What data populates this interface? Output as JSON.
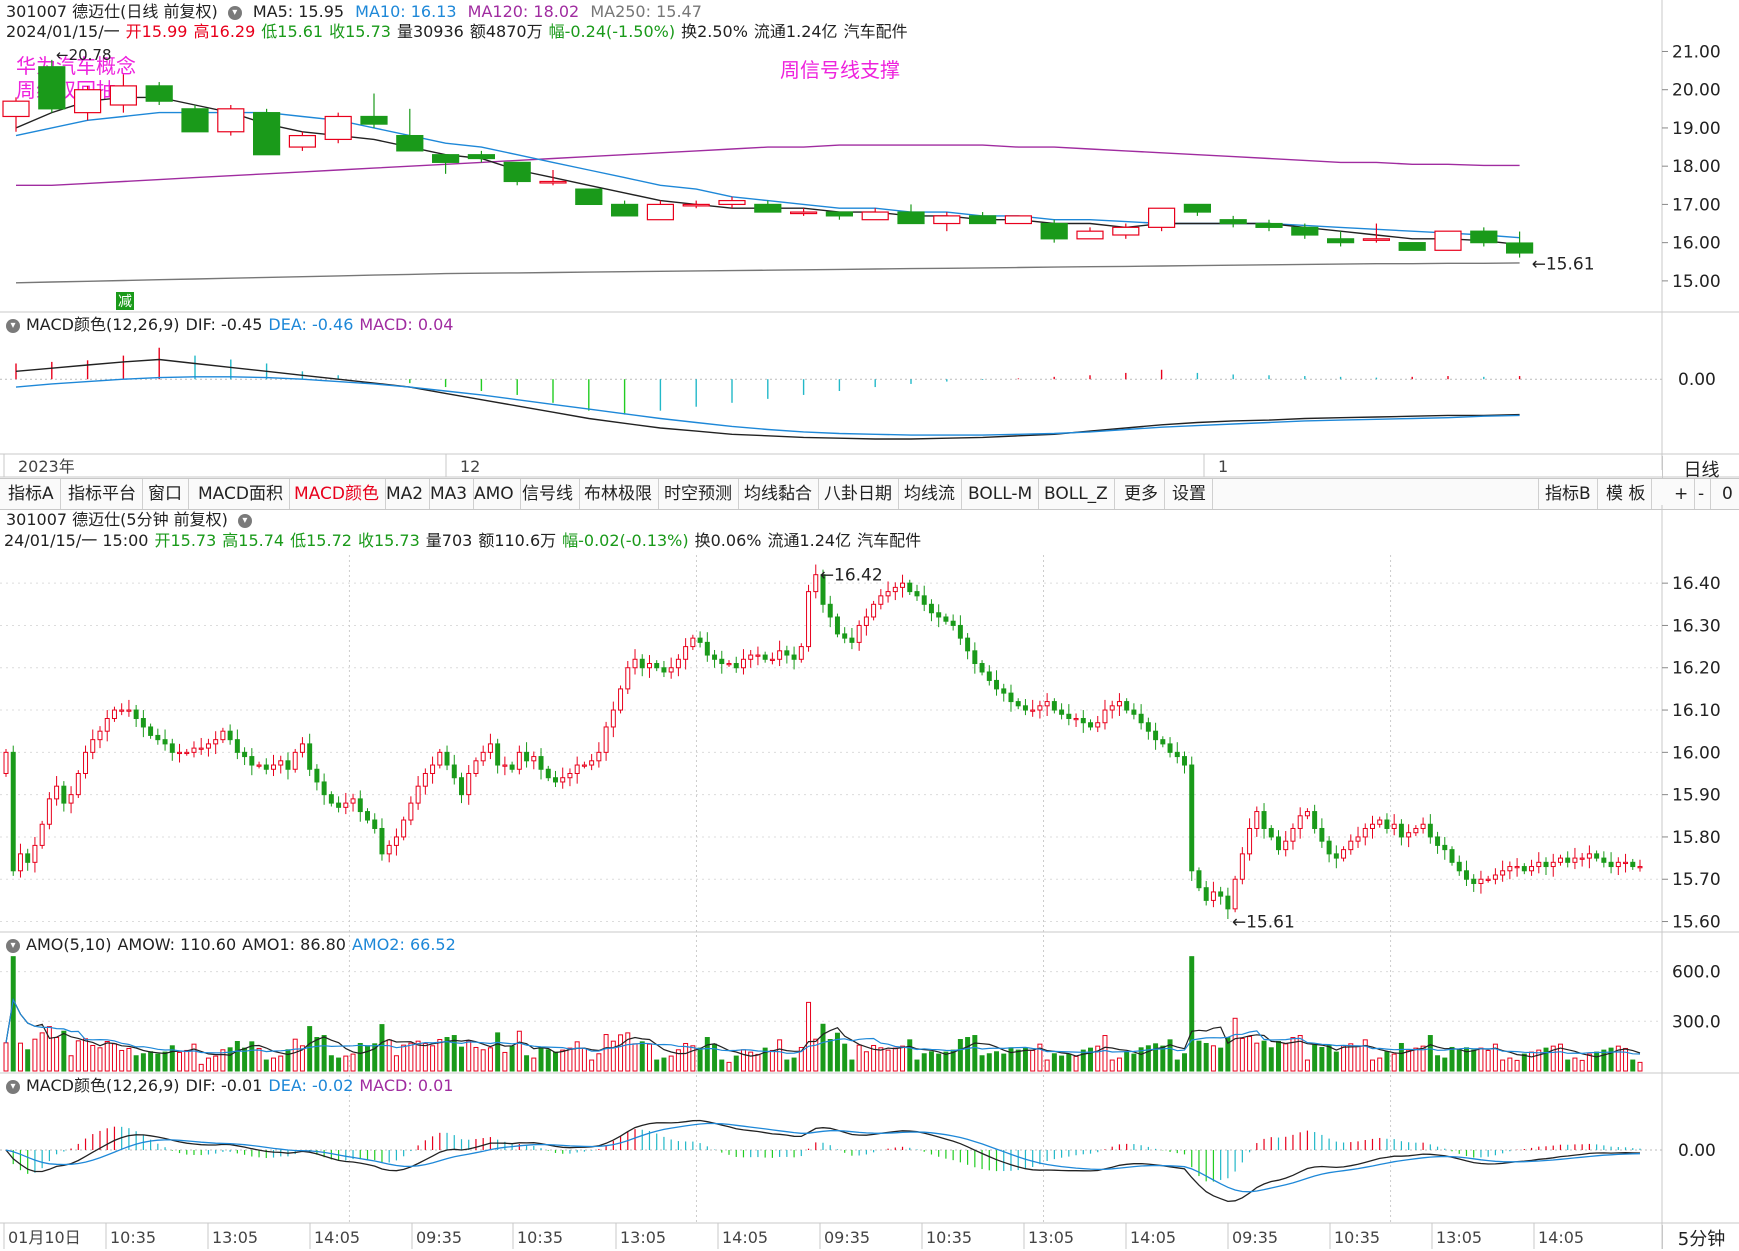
{
  "daily": {
    "title": "301007 德迈仕(日线 前复权)",
    "ma_line": [
      {
        "label": "MA5: 15.95",
        "color": "#222222"
      },
      {
        "label": "MA10: 16.13",
        "color": "#1e88d8"
      },
      {
        "label": "MA120: 18.02",
        "color": "#a02ca0"
      },
      {
        "label": "MA250: 15.47",
        "color": "#777777"
      }
    ],
    "info": {
      "date": "2024/01/15/一",
      "open_lbl": "开",
      "open": "15.99",
      "high_lbl": "高",
      "high": "16.29",
      "low_lbl": "低",
      "low": "15.61",
      "close_lbl": "收",
      "close": "15.73",
      "vol": "量30936",
      "amt": "额4870万",
      "chg_lbl": "幅",
      "chg": "-0.24(-1.50%)",
      "turn": "换2.50%",
      "float": "流通1.24亿",
      "industry": "汽车配件"
    },
    "annotations": {
      "a1": "华为汽车概念",
      "a2": "周线双回抽",
      "a3": "周信号线支撑",
      "high_mark": "20.78",
      "low_mark": "15.61",
      "sign": "减"
    },
    "yticks": [
      "21.00",
      "20.00",
      "19.00",
      "18.00",
      "17.00",
      "16.00",
      "15.00"
    ],
    "dates": [
      "2023年",
      "12",
      "1"
    ],
    "period": "日线"
  },
  "daily_macd": {
    "title": "MACD颜色(12,26,9)",
    "dif": "DIF: -0.45",
    "dea": "DEA: -0.46",
    "macd": "MACD: 0.04",
    "ytick": "0.00"
  },
  "toolbar": {
    "items": [
      "指标A",
      "指标平台",
      "窗口",
      "MACD面积",
      "MACD颜色",
      "MA2",
      "MA3",
      "AMO",
      "信号线",
      "布林极限",
      "时空预测",
      "均线黏合",
      "八卦日期",
      "均线流",
      "BOLL-M",
      "BOLL_Z",
      "更多",
      "设置"
    ],
    "right": [
      "指标B",
      "模 板",
      "+",
      "-",
      "0"
    ]
  },
  "intraday": {
    "title": "301007 德迈仕(5分钟 前复权)",
    "info": {
      "date": "24/01/15/一 15:00",
      "open_lbl": "开",
      "open": "15.73",
      "high_lbl": "高",
      "high": "15.74",
      "low_lbl": "低",
      "low": "15.72",
      "close_lbl": "收",
      "close": "15.73",
      "vol": "量703",
      "amt": "额110.6万",
      "chg_lbl": "幅",
      "chg": "-0.02(-0.13%)",
      "turn": "换0.06%",
      "float": "流通1.24亿",
      "industry": "汽车配件"
    },
    "high_mark": "16.42",
    "low_mark": "15.61",
    "yticks": [
      "16.40",
      "16.30",
      "16.20",
      "16.10",
      "16.00",
      "15.90",
      "15.80",
      "15.70",
      "15.60"
    ]
  },
  "amo": {
    "title": "AMO(5,10)",
    "amow": "AMOW: 110.60",
    "amo1": "AMO1: 86.80",
    "amo2": "AMO2: 66.52",
    "yticks": [
      "600.0",
      "300.0"
    ]
  },
  "intraday_macd": {
    "title": "MACD颜色(12,26,9)",
    "dif": "DIF: -0.01",
    "dea": "DEA: -0.02",
    "macd": "MACD: 0.01",
    "ytick": "0.00"
  },
  "time_axis": [
    "01月10日",
    "10:35",
    "13:05",
    "14:05",
    "09:35",
    "10:35",
    "13:05",
    "14:05",
    "09:35",
    "10:35",
    "13:05",
    "14:05",
    "09:35",
    "10:35",
    "13:05",
    "14:05"
  ],
  "period": "5分钟",
  "colors": {
    "up": "#e8001c",
    "down": "#1a9a1a",
    "ma5": "#222222",
    "ma10": "#1e88d8",
    "ma120": "#a02ca0",
    "ma250": "#777777",
    "annotation": "#ee22dd"
  },
  "chart_data": [
    {
      "type": "candlestick",
      "name": "daily",
      "ylim": [
        14.5,
        21.3
      ],
      "candles": [
        {
          "o": 19.3,
          "h": 19.8,
          "l": 18.9,
          "c": 19.7
        },
        {
          "o": 20.6,
          "h": 20.78,
          "l": 19.4,
          "c": 19.5
        },
        {
          "o": 19.4,
          "h": 20.1,
          "l": 19.2,
          "c": 20.0
        },
        {
          "o": 19.6,
          "h": 20.4,
          "l": 19.4,
          "c": 20.1
        },
        {
          "o": 20.1,
          "h": 20.2,
          "l": 19.6,
          "c": 19.7
        },
        {
          "o": 19.5,
          "h": 19.6,
          "l": 18.9,
          "c": 18.9
        },
        {
          "o": 18.9,
          "h": 19.6,
          "l": 18.8,
          "c": 19.5
        },
        {
          "o": 19.4,
          "h": 19.5,
          "l": 18.3,
          "c": 18.3
        },
        {
          "o": 18.5,
          "h": 18.9,
          "l": 18.4,
          "c": 18.8
        },
        {
          "o": 18.7,
          "h": 19.4,
          "l": 18.6,
          "c": 19.3
        },
        {
          "o": 19.3,
          "h": 19.9,
          "l": 19.0,
          "c": 19.1
        },
        {
          "o": 18.8,
          "h": 19.5,
          "l": 18.4,
          "c": 18.4
        },
        {
          "o": 18.3,
          "h": 18.3,
          "l": 17.8,
          "c": 18.1
        },
        {
          "o": 18.3,
          "h": 18.4,
          "l": 18.1,
          "c": 18.2
        },
        {
          "o": 18.1,
          "h": 18.1,
          "l": 17.5,
          "c": 17.6
        },
        {
          "o": 17.6,
          "h": 17.9,
          "l": 17.5,
          "c": 17.6
        },
        {
          "o": 17.4,
          "h": 17.4,
          "l": 17.0,
          "c": 17.0
        },
        {
          "o": 17.0,
          "h": 17.1,
          "l": 16.7,
          "c": 16.7
        },
        {
          "o": 16.6,
          "h": 17.1,
          "l": 16.6,
          "c": 17.0
        },
        {
          "o": 17.0,
          "h": 17.1,
          "l": 16.9,
          "c": 17.0
        },
        {
          "o": 17.0,
          "h": 17.2,
          "l": 16.9,
          "c": 17.1
        },
        {
          "o": 17.0,
          "h": 17.1,
          "l": 16.8,
          "c": 16.8
        },
        {
          "o": 16.8,
          "h": 16.9,
          "l": 16.7,
          "c": 16.8
        },
        {
          "o": 16.8,
          "h": 16.8,
          "l": 16.6,
          "c": 16.7
        },
        {
          "o": 16.6,
          "h": 16.9,
          "l": 16.6,
          "c": 16.8
        },
        {
          "o": 16.8,
          "h": 17.0,
          "l": 16.5,
          "c": 16.5
        },
        {
          "o": 16.5,
          "h": 16.8,
          "l": 16.3,
          "c": 16.7
        },
        {
          "o": 16.7,
          "h": 16.8,
          "l": 16.5,
          "c": 16.5
        },
        {
          "o": 16.5,
          "h": 16.7,
          "l": 16.5,
          "c": 16.7
        },
        {
          "o": 16.5,
          "h": 16.6,
          "l": 16.0,
          "c": 16.1
        },
        {
          "o": 16.1,
          "h": 16.4,
          "l": 16.1,
          "c": 16.3
        },
        {
          "o": 16.2,
          "h": 16.5,
          "l": 16.1,
          "c": 16.4
        },
        {
          "o": 16.4,
          "h": 16.9,
          "l": 16.3,
          "c": 16.9
        },
        {
          "o": 17.0,
          "h": 17.0,
          "l": 16.7,
          "c": 16.8
        },
        {
          "o": 16.6,
          "h": 16.7,
          "l": 16.4,
          "c": 16.5
        },
        {
          "o": 16.5,
          "h": 16.6,
          "l": 16.3,
          "c": 16.4
        },
        {
          "o": 16.4,
          "h": 16.5,
          "l": 16.1,
          "c": 16.2
        },
        {
          "o": 16.1,
          "h": 16.3,
          "l": 15.9,
          "c": 16.0
        },
        {
          "o": 16.1,
          "h": 16.5,
          "l": 16.0,
          "c": 16.1
        },
        {
          "o": 16.0,
          "h": 16.0,
          "l": 15.8,
          "c": 15.8
        },
        {
          "o": 15.8,
          "h": 16.3,
          "l": 15.8,
          "c": 16.3
        },
        {
          "o": 16.3,
          "h": 16.4,
          "l": 15.9,
          "c": 16.0
        },
        {
          "o": 15.99,
          "h": 16.29,
          "l": 15.61,
          "c": 15.73
        }
      ],
      "ma5": [
        19.0,
        19.4,
        19.7,
        19.8,
        19.8,
        19.6,
        19.4,
        19.1,
        18.9,
        18.8,
        18.7,
        18.5,
        18.3,
        18.2,
        17.9,
        17.7,
        17.5,
        17.3,
        17.1,
        17.0,
        16.9,
        16.9,
        16.9,
        16.8,
        16.8,
        16.7,
        16.7,
        16.6,
        16.6,
        16.5,
        16.5,
        16.4,
        16.5,
        16.5,
        16.5,
        16.5,
        16.4,
        16.3,
        16.2,
        16.1,
        16.1,
        16.05,
        15.95
      ],
      "ma10": [
        18.8,
        19.0,
        19.2,
        19.3,
        19.4,
        19.4,
        19.4,
        19.4,
        19.3,
        19.2,
        19.0,
        18.8,
        18.6,
        18.5,
        18.3,
        18.1,
        17.9,
        17.7,
        17.5,
        17.4,
        17.2,
        17.1,
        17.0,
        16.9,
        16.9,
        16.8,
        16.8,
        16.7,
        16.7,
        16.6,
        16.6,
        16.55,
        16.5,
        16.5,
        16.5,
        16.5,
        16.45,
        16.4,
        16.35,
        16.3,
        16.25,
        16.2,
        16.13
      ],
      "ma120": [
        17.5,
        17.5,
        17.55,
        17.6,
        17.65,
        17.7,
        17.75,
        17.8,
        17.85,
        17.9,
        17.95,
        18.0,
        18.05,
        18.1,
        18.15,
        18.2,
        18.25,
        18.3,
        18.35,
        18.4,
        18.45,
        18.5,
        18.5,
        18.55,
        18.55,
        18.55,
        18.55,
        18.55,
        18.5,
        18.5,
        18.45,
        18.4,
        18.35,
        18.3,
        18.25,
        18.2,
        18.15,
        18.1,
        18.1,
        18.05,
        18.05,
        18.02,
        18.02
      ],
      "ma250": [
        14.95,
        14.97,
        14.99,
        15.01,
        15.03,
        15.05,
        15.07,
        15.09,
        15.11,
        15.13,
        15.15,
        15.17,
        15.19,
        15.2,
        15.21,
        15.22,
        15.23,
        15.24,
        15.25,
        15.26,
        15.27,
        15.28,
        15.29,
        15.3,
        15.31,
        15.32,
        15.33,
        15.34,
        15.35,
        15.36,
        15.37,
        15.38,
        15.39,
        15.4,
        15.41,
        15.42,
        15.43,
        15.44,
        15.45,
        15.45,
        15.46,
        15.46,
        15.47
      ]
    },
    {
      "type": "bar",
      "name": "daily_macd",
      "ylim": [
        -0.9,
        0.6
      ],
      "macd": [
        0.2,
        0.22,
        0.24,
        0.3,
        0.4,
        0.3,
        0.25,
        0.2,
        0.1,
        0.05,
        0.0,
        -0.05,
        -0.1,
        -0.15,
        -0.2,
        -0.3,
        -0.4,
        -0.45,
        -0.4,
        -0.35,
        -0.3,
        -0.25,
        -0.2,
        -0.15,
        -0.1,
        -0.06,
        -0.03,
        -0.01,
        0.01,
        0.03,
        0.05,
        0.08,
        0.12,
        0.08,
        0.06,
        0.05,
        0.04,
        0.03,
        0.02,
        0.03,
        0.04,
        0.03,
        0.04
      ],
      "dif": [
        0.1,
        0.14,
        0.18,
        0.22,
        0.25,
        0.2,
        0.15,
        0.1,
        0.05,
        0.0,
        -0.05,
        -0.1,
        -0.18,
        -0.26,
        -0.34,
        -0.42,
        -0.5,
        -0.56,
        -0.62,
        -0.66,
        -0.7,
        -0.72,
        -0.74,
        -0.75,
        -0.76,
        -0.76,
        -0.75,
        -0.74,
        -0.72,
        -0.7,
        -0.66,
        -0.62,
        -0.58,
        -0.55,
        -0.53,
        -0.52,
        -0.5,
        -0.49,
        -0.48,
        -0.47,
        -0.46,
        -0.46,
        -0.45
      ],
      "dea": [
        -0.1,
        -0.06,
        -0.03,
        0.0,
        0.02,
        0.03,
        0.03,
        0.02,
        0.0,
        -0.03,
        -0.06,
        -0.1,
        -0.15,
        -0.2,
        -0.26,
        -0.32,
        -0.38,
        -0.44,
        -0.5,
        -0.55,
        -0.6,
        -0.64,
        -0.67,
        -0.69,
        -0.7,
        -0.71,
        -0.71,
        -0.71,
        -0.7,
        -0.69,
        -0.67,
        -0.64,
        -0.61,
        -0.59,
        -0.57,
        -0.55,
        -0.53,
        -0.52,
        -0.51,
        -0.5,
        -0.49,
        -0.47,
        -0.46
      ]
    },
    {
      "type": "candlestick",
      "name": "intraday_5min",
      "ylim": [
        15.58,
        16.45
      ],
      "closes": [
        16.0,
        15.72,
        15.76,
        15.74,
        15.78,
        15.83,
        15.89,
        15.92,
        15.88,
        15.9,
        15.95,
        16.0,
        16.03,
        16.05,
        16.08,
        16.1,
        16.1,
        16.1,
        16.08,
        16.06,
        16.04,
        16.03,
        16.02,
        16.0,
        16.0,
        16.0,
        16.01,
        16.01,
        16.02,
        16.03,
        16.05,
        16.03,
        16.0,
        15.99,
        15.97,
        15.97,
        15.96,
        15.97,
        15.98,
        15.96,
        16.0,
        16.02,
        15.96,
        15.93,
        15.9,
        15.88,
        15.87,
        15.88,
        15.89,
        15.86,
        15.84,
        15.82,
        15.76,
        15.78,
        15.8,
        15.84,
        15.88,
        15.92,
        15.95,
        15.97,
        16.0,
        15.97,
        15.94,
        15.9,
        15.95,
        15.98,
        16.0,
        16.02,
        15.97,
        15.97,
        15.96,
        16.0,
        15.98,
        15.99,
        15.96,
        15.94,
        15.93,
        15.94,
        15.95,
        15.97,
        15.97,
        15.98,
        16.0,
        16.06,
        16.1,
        16.15,
        16.2,
        16.22,
        16.2,
        16.21,
        16.2,
        16.19,
        16.2,
        16.22,
        16.25,
        16.27,
        16.26,
        16.23,
        16.22,
        16.21,
        16.21,
        16.2,
        16.22,
        16.23,
        16.23,
        16.22,
        16.22,
        16.24,
        16.23,
        16.22,
        16.25,
        16.38,
        16.42,
        16.35,
        16.32,
        16.28,
        16.27,
        16.26,
        16.3,
        16.32,
        16.35,
        16.37,
        16.38,
        16.39,
        16.4,
        16.38,
        16.37,
        16.35,
        16.33,
        16.32,
        16.31,
        16.3,
        16.27,
        16.24,
        16.21,
        16.19,
        16.17,
        16.15,
        16.14,
        16.12,
        16.11,
        16.1,
        16.1,
        16.11,
        16.12,
        16.1,
        16.09,
        16.08,
        16.08,
        16.07,
        16.06,
        16.07,
        16.1,
        16.11,
        16.12,
        16.1,
        16.09,
        16.07,
        16.05,
        16.03,
        16.02,
        16.0,
        15.99,
        15.97,
        15.72,
        15.68,
        15.65,
        15.67,
        15.66,
        15.63,
        15.7,
        15.76,
        15.82,
        15.86,
        15.82,
        15.8,
        15.77,
        15.79,
        15.82,
        15.85,
        15.86,
        15.82,
        15.79,
        15.76,
        15.75,
        15.77,
        15.79,
        15.8,
        15.82,
        15.83,
        15.84,
        15.82,
        15.83,
        15.8,
        15.81,
        15.82,
        15.83,
        15.8,
        15.78,
        15.77,
        15.74,
        15.72,
        15.7,
        15.69,
        15.7,
        15.7,
        15.71,
        15.72,
        15.73,
        15.73,
        15.72,
        15.73,
        15.74,
        15.73,
        15.74,
        15.75,
        15.74,
        15.75,
        15.75,
        15.76,
        15.75,
        15.74,
        15.73,
        15.74,
        15.74,
        15.73,
        15.73
      ],
      "day_breaks": [
        0,
        48,
        96,
        144,
        192
      ]
    },
    {
      "type": "bar",
      "name": "amo_volume",
      "ylim": [
        0,
        700
      ],
      "note": "volume bars derived from close-to-close move magnitudes",
      "amo1_level": 86.8,
      "amo2_level": 66.52,
      "amow_last": 110.6
    },
    {
      "type": "bar",
      "name": "intraday_macd",
      "dif_last": -0.01,
      "dea_last": -0.02,
      "macd_last": 0.01
    }
  ]
}
